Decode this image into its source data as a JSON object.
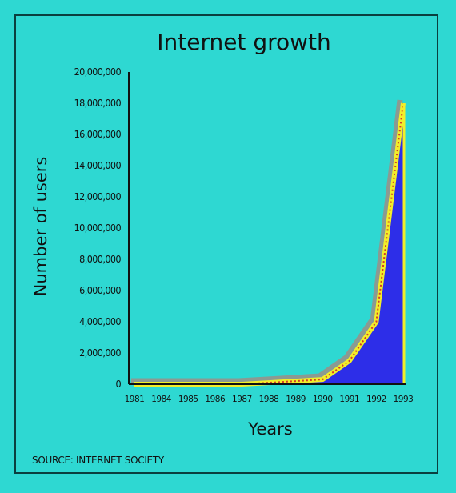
{
  "chart_data": {
    "type": "area",
    "title": "Internet growth",
    "xlabel": "Years",
    "ylabel": "Number of users",
    "source": "SOURCE: INTERNET SOCIETY",
    "x_tick_labels": [
      "1981",
      "1984",
      "1985",
      "1986",
      "1987",
      "1988",
      "1989",
      "1990",
      "1991",
      "1992",
      "1993"
    ],
    "y_tick_labels": [
      "0",
      "2,000,000",
      "4,000,000",
      "6,000,000",
      "8,000,000",
      "10,000,000",
      "12,000,000",
      "14,000,000",
      "16,000,000",
      "18,000,000",
      "20,000,000"
    ],
    "ylim": [
      0,
      20000000
    ],
    "grid": false,
    "values": [
      0,
      0,
      0,
      0,
      0,
      100000,
      200000,
      300000,
      1500000,
      4000000,
      18000000
    ],
    "colors": {
      "background": "#2ed8d2",
      "fill": "#2d2ee8",
      "outline_shadow": "#8b9a92",
      "outline": "#f2ee2a",
      "outline_dots": "#d23a2a",
      "axis": "#111111"
    }
  }
}
